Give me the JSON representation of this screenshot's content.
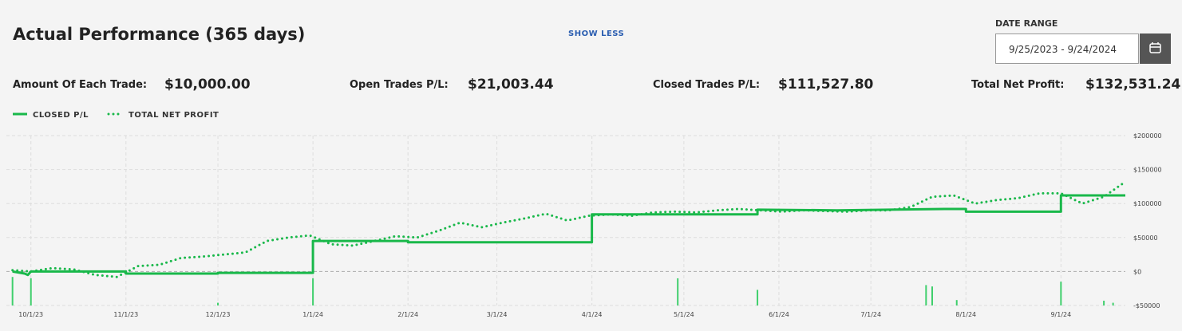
{
  "header": {
    "title": "Actual Performance (365 days)",
    "toggle": "SHOW LESS",
    "date_range_label": "DATE RANGE",
    "date_range": "9/25/2023 - 9/24/2024"
  },
  "stats": [
    {
      "label": "Amount Of Each Trade:",
      "value": "$10,000.00"
    },
    {
      "label": "Open Trades P/L:",
      "value": "$21,003.44"
    },
    {
      "label": "Closed Trades P/L:",
      "value": "$111,527.80"
    },
    {
      "label": "Total Net Profit:",
      "value": "$132,531.24"
    }
  ],
  "chart_data": {
    "type": "line",
    "series": [
      {
        "name": "CLOSED P/L",
        "color": "#19b84a",
        "style": "solid",
        "x": [
          "9/25/23",
          "9/29/23",
          "9/30/23",
          "10/1/23",
          "11/1/23",
          "11/1/23",
          "12/1/23",
          "12/1/23",
          "1/1/24",
          "1/1/24",
          "2/1/24",
          "2/1/24",
          "4/1/24",
          "4/1/24",
          "5/25/24",
          "5/25/24",
          "6/20/24",
          "7/25/24",
          "8/1/24",
          "8/1/24",
          "9/1/24",
          "9/1/24",
          "9/22/24"
        ],
        "values": [
          0,
          -3000,
          -5000,
          0,
          0,
          -3000,
          -3000,
          -2000,
          -2000,
          45000,
          45000,
          43000,
          43000,
          84000,
          84000,
          91000,
          90000,
          92000,
          92000,
          88000,
          88000,
          112000,
          112000
        ]
      },
      {
        "name": "TOTAL NET PROFIT",
        "color": "#19b84a",
        "style": "dotted",
        "x": [
          "9/25/23",
          "10/1/23",
          "10/8/23",
          "10/15/23",
          "10/22/23",
          "10/29/23",
          "11/5/23",
          "11/12/23",
          "11/19/23",
          "11/26/23",
          "12/3/23",
          "12/10/23",
          "12/17/23",
          "12/24/23",
          "12/31/23",
          "1/7/24",
          "1/14/24",
          "1/21/24",
          "1/28/24",
          "2/4/24",
          "2/11/24",
          "2/18/24",
          "2/25/24",
          "3/3/24",
          "3/10/24",
          "3/17/24",
          "3/24/24",
          "3/31/24",
          "4/7/24",
          "4/14/24",
          "4/21/24",
          "4/28/24",
          "5/5/24",
          "5/12/24",
          "5/19/24",
          "5/26/24",
          "6/2/24",
          "6/9/24",
          "6/16/24",
          "6/23/24",
          "6/30/24",
          "7/7/24",
          "7/14/24",
          "7/21/24",
          "7/28/24",
          "8/4/24",
          "8/11/24",
          "8/18/24",
          "8/25/24",
          "9/1/24",
          "9/8/24",
          "9/15/24",
          "9/22/24"
        ],
        "values": [
          2000,
          0,
          5000,
          3000,
          -5000,
          -8000,
          8000,
          10000,
          20000,
          22000,
          25000,
          28000,
          45000,
          50000,
          53000,
          40000,
          38000,
          45000,
          52000,
          50000,
          60000,
          72000,
          65000,
          72000,
          78000,
          85000,
          75000,
          82000,
          84000,
          82000,
          87000,
          88000,
          87000,
          90000,
          92000,
          90000,
          88000,
          90000,
          89000,
          88000,
          90000,
          90000,
          95000,
          110000,
          112000,
          100000,
          105000,
          108000,
          115000,
          115000,
          100000,
          110000,
          132000
        ]
      }
    ],
    "bars": {
      "color": "#3fcf6c",
      "x": [
        "9/25/23",
        "10/1/23",
        "12/1/23",
        "1/1/24",
        "4/29/24",
        "5/25/24",
        "7/19/24",
        "7/21/24",
        "7/29/24",
        "9/1/24",
        "9/15/24",
        "9/18/24"
      ],
      "values": [
        -8000,
        -10000,
        -46000,
        -10000,
        -10000,
        -27000,
        -20000,
        -22000,
        -42000,
        -15000,
        -43000,
        -46000
      ]
    },
    "xlim": [
      "9/23/23",
      "9/22/24"
    ],
    "xticks": [
      "10/1/23",
      "11/1/23",
      "12/1/23",
      "1/1/24",
      "2/1/24",
      "3/1/24",
      "4/1/24",
      "5/1/24",
      "6/1/24",
      "7/1/24",
      "8/1/24",
      "9/1/24"
    ],
    "ylim": [
      -50000,
      200000
    ],
    "yticks": [
      {
        "value": -50000,
        "label": "-$50000"
      },
      {
        "value": 0,
        "label": "$0"
      },
      {
        "value": 50000,
        "label": "$50000"
      },
      {
        "value": 100000,
        "label": "$100000"
      },
      {
        "value": 150000,
        "label": "$150000"
      },
      {
        "value": 200000,
        "label": "$200000"
      }
    ],
    "grid": true
  }
}
